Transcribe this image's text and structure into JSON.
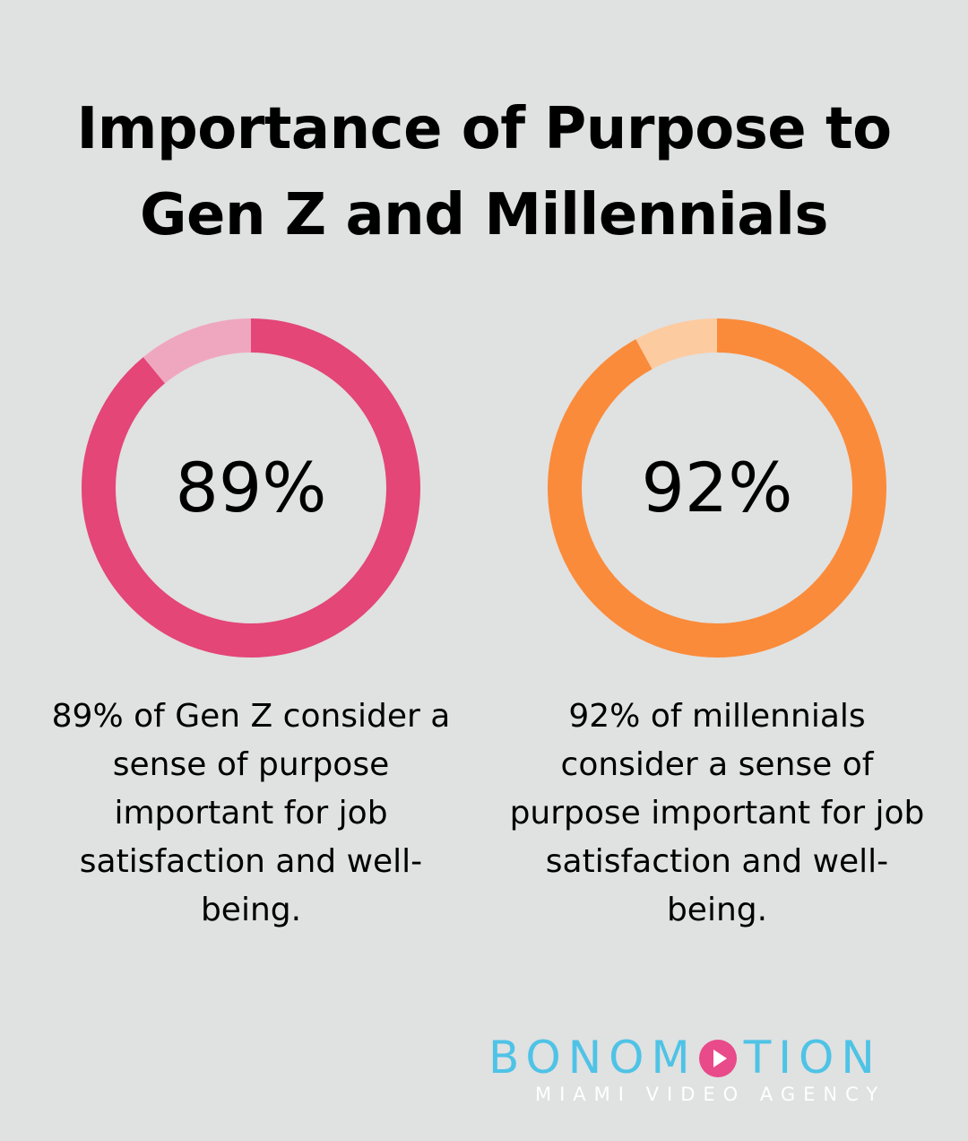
{
  "title_line1": "Importance of Purpose to",
  "title_line2": "Gen Z and Millennials",
  "chart_data": [
    {
      "type": "pie",
      "label": "89%",
      "values": [
        89,
        11
      ],
      "colors": [
        "#e34677",
        "#efa7c0"
      ],
      "caption": "89% of Gen Z consider a sense of purpose important for job satisfaction and well-being."
    },
    {
      "type": "pie",
      "label": "92%",
      "values": [
        92,
        8
      ],
      "colors": [
        "#fa8b3a",
        "#fdcba0"
      ],
      "caption": "92% of millennials consider a sense of purpose important for job satisfaction and well-being."
    }
  ],
  "logo": {
    "name_before": "BONOM",
    "name_after": "TION",
    "tagline": "MIAMI VIDEO AGENCY",
    "icon": "play-icon",
    "name_color": "#4ec3e6",
    "icon_color": "#e84a8a"
  }
}
